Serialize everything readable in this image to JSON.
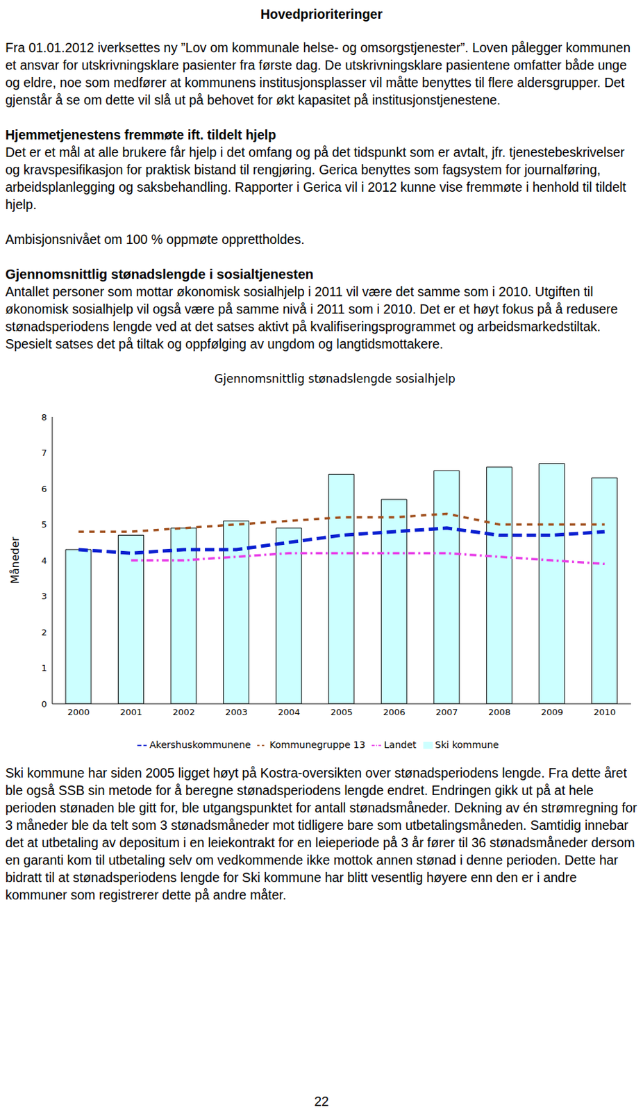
{
  "header": {
    "title": "Hovedprioriteringer"
  },
  "sections": [
    {
      "heading": null,
      "paragraphs": [
        "Fra 01.01.2012 iverksettes ny ”Lov om kommunale helse- og omsorgstjenester”. Loven pålegger kommunen et ansvar for utskrivningsklare pasienter fra første dag. De utskrivningsklare pasientene omfatter både unge og eldre, noe som medfører at kommunens institusjonsplasser vil måtte benyttes til flere aldersgrupper. Det gjenstår å se om dette vil slå ut på behovet for økt kapasitet på institusjonstjenestene."
      ]
    },
    {
      "heading": "Hjemmetjenestens fremmøte ift. tildelt hjelp",
      "paragraphs": [
        "Det er et mål at alle brukere får hjelp i det omfang og på det tidspunkt som er avtalt, jfr. tjenestebeskrivelser og kravspesifikasjon for praktisk bistand til rengjøring. Gerica benyttes som fagsystem for journalføring, arbeidsplanlegging og saksbehandling. Rapporter i Gerica vil i 2012 kunne vise fremmøte i henhold til tildelt hjelp.",
        "Ambisjonsnivået om 100 % oppmøte opprettholdes."
      ]
    },
    {
      "heading": "Gjennomsnittlig stønadslengde i sosialtjenesten",
      "paragraphs": [
        "Antallet personer som mottar økonomisk sosialhjelp i 2011 vil være det samme som i 2010. Utgiften til økonomisk sosialhjelp vil også være på samme nivå i 2011 som i 2010. Det er et høyt fokus på å redusere stønadsperiodens lengde ved at det satses aktivt på kvalifiseringsprogrammet og arbeidsmarkedstiltak. Spesielt satses det på tiltak og oppfølging av ungdom og langtidsmottakere."
      ]
    }
  ],
  "chart_data": {
    "type": "bar",
    "title": "Gjennomsnittlig stønadslengde sosialhjelp",
    "y_label": "Måneder",
    "categories": [
      "2000",
      "2001",
      "2002",
      "2003",
      "2004",
      "2005",
      "2006",
      "2007",
      "2008",
      "2009",
      "2010"
    ],
    "series": [
      {
        "name": "Ski kommune",
        "type": "bar",
        "color": "#ccffff",
        "values": [
          4.3,
          4.7,
          4.9,
          5.1,
          4.9,
          6.4,
          5.7,
          6.5,
          6.6,
          6.7,
          6.3
        ]
      },
      {
        "name": "Landet",
        "type": "line",
        "color": "#e83ee8",
        "line_style": "dashdot",
        "values": [
          null,
          4.0,
          4.0,
          4.1,
          4.2,
          4.2,
          4.2,
          4.2,
          4.1,
          4.0,
          3.9
        ]
      },
      {
        "name": "Akershuskommunene",
        "type": "line",
        "color": "#0a1fd0",
        "line_style": "dashed",
        "values": [
          4.3,
          4.2,
          4.3,
          4.3,
          4.5,
          4.7,
          4.8,
          4.9,
          4.7,
          4.7,
          4.8
        ]
      },
      {
        "name": "Kommunegruppe 13",
        "type": "line",
        "color": "#a0501e",
        "line_style": "dotted",
        "values": [
          4.8,
          4.8,
          4.9,
          5.0,
          5.1,
          5.2,
          5.2,
          5.3,
          5.0,
          5.0,
          5.0
        ]
      }
    ],
    "ylim": [
      0,
      8
    ],
    "yticks": [
      0,
      1,
      2,
      3,
      4,
      5,
      6,
      7,
      8
    ],
    "grid": false,
    "legend": "bottom"
  },
  "after_chart": [
    "Ski kommune har siden 2005 ligget høyt på Kostra-oversikten over stønadsperiodens lengde. Fra dette året ble også SSB sin metode for å beregne stønadsperiodens lengde endret. Endringen gikk ut på at hele perioden stønaden ble gitt for, ble utgangspunktet for antall stønadsmåneder. Dekning av én strømregning for 3 måneder ble da telt som 3 stønadsmåneder mot tidligere bare som utbetalingsmåneden. Samtidig innebar det at utbetaling av depositum i en leiekontrakt for en leieperiode på 3 år fører til 36 stønadsmåneder dersom en garanti kom til utbetaling selv om vedkommende ikke mottok annen stønad i denne perioden. Dette har bidratt til at stønadsperiodens lengde for Ski kommune har blitt vesentlig høyere enn den er i andre kommuner som registrerer dette på andre måter."
  ],
  "page_number": "22"
}
